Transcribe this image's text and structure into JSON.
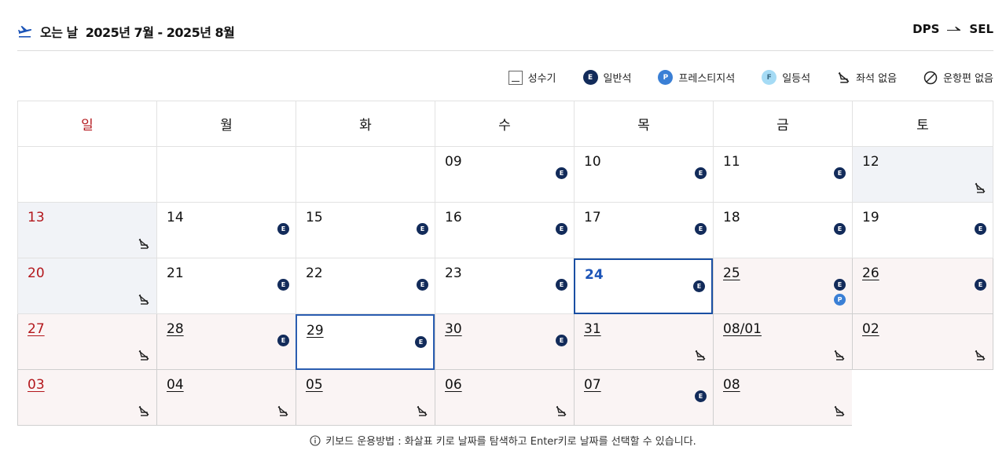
{
  "header": {
    "label": "오는 날",
    "range": "2025년 7월 - 2025년 8월",
    "origin": "DPS",
    "destination": "SEL"
  },
  "legend": [
    {
      "key": "peak",
      "label": "성수기"
    },
    {
      "key": "economy",
      "label": "일반석",
      "badge": "E"
    },
    {
      "key": "prestige",
      "label": "프레스티지석",
      "badge": "P"
    },
    {
      "key": "first",
      "label": "일등석",
      "badge": "F"
    },
    {
      "key": "noseat",
      "label": "좌석 없음"
    },
    {
      "key": "noflight",
      "label": "운항편 없음"
    }
  ],
  "weekdays": [
    "일",
    "월",
    "화",
    "수",
    "목",
    "금",
    "토"
  ],
  "weeks": [
    [
      {
        "day": ""
      },
      {
        "day": ""
      },
      {
        "day": ""
      },
      {
        "day": "09",
        "marks": [
          "E"
        ]
      },
      {
        "day": "10",
        "marks": [
          "E"
        ]
      },
      {
        "day": "11",
        "marks": [
          "E"
        ]
      },
      {
        "day": "12",
        "marks": [
          "noseat"
        ],
        "style": "gray"
      }
    ],
    [
      {
        "day": "13",
        "marks": [
          "noseat"
        ],
        "style": "gray",
        "sun": true
      },
      {
        "day": "14",
        "marks": [
          "E"
        ]
      },
      {
        "day": "15",
        "marks": [
          "E"
        ]
      },
      {
        "day": "16",
        "marks": [
          "E"
        ]
      },
      {
        "day": "17",
        "marks": [
          "E"
        ]
      },
      {
        "day": "18",
        "marks": [
          "E"
        ]
      },
      {
        "day": "19",
        "marks": [
          "E"
        ]
      }
    ],
    [
      {
        "day": "20",
        "marks": [
          "noseat"
        ],
        "style": "gray",
        "sun": true
      },
      {
        "day": "21",
        "marks": [
          "E"
        ]
      },
      {
        "day": "22",
        "marks": [
          "E"
        ]
      },
      {
        "day": "23",
        "marks": [
          "E"
        ]
      },
      {
        "day": "24",
        "marks": [
          "E"
        ],
        "style": "today"
      },
      {
        "day": "25",
        "marks": [
          "E",
          "P"
        ],
        "style": "pink",
        "peak": true
      },
      {
        "day": "26",
        "marks": [
          "E"
        ],
        "style": "pink",
        "peak": true
      }
    ],
    [
      {
        "day": "27",
        "marks": [
          "noseat"
        ],
        "style": "pink",
        "peak": true,
        "sun": true
      },
      {
        "day": "28",
        "marks": [
          "E"
        ],
        "style": "pink",
        "peak": true
      },
      {
        "day": "29",
        "marks": [
          "E"
        ],
        "style": "sel",
        "peak": true
      },
      {
        "day": "30",
        "marks": [
          "E"
        ],
        "style": "pink",
        "peak": true
      },
      {
        "day": "31",
        "marks": [
          "noseat"
        ],
        "style": "pink",
        "peak": true
      },
      {
        "day": "08/01",
        "marks": [
          "noseat"
        ],
        "style": "pink",
        "peak": true
      },
      {
        "day": "02",
        "marks": [
          "noseat"
        ],
        "style": "pink",
        "peak": true
      }
    ],
    [
      {
        "day": "03",
        "marks": [
          "noseat"
        ],
        "style": "pink",
        "peak": true,
        "sun": true
      },
      {
        "day": "04",
        "marks": [
          "noseat"
        ],
        "style": "pink",
        "peak": true
      },
      {
        "day": "05",
        "marks": [
          "noseat"
        ],
        "style": "pink",
        "peak": true
      },
      {
        "day": "06",
        "marks": [
          "noseat"
        ],
        "style": "pink",
        "peak": true
      },
      {
        "day": "07",
        "marks": [
          "E"
        ],
        "style": "pink",
        "peak": true
      },
      {
        "day": "08",
        "marks": [
          "noseat"
        ],
        "style": "pink",
        "peak": true
      },
      {
        "day": "",
        "style": "blank-end"
      }
    ]
  ],
  "footer": {
    "text": "키보드 운용방법 : 화살표 키로 날짜를 탐색하고 Enter키로 날짜를 선택할 수 있습니다."
  }
}
